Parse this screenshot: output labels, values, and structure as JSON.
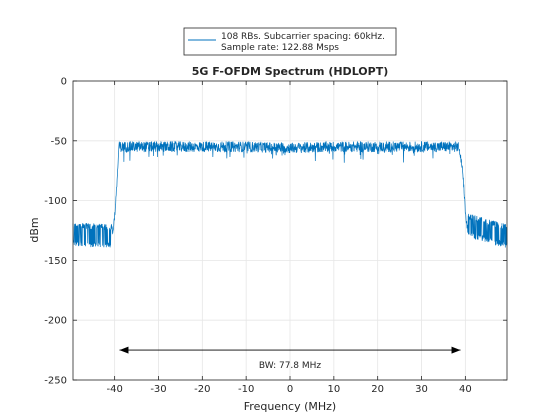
{
  "chart_data": {
    "type": "line",
    "title": "5G F-OFDM Spectrum (HDLOPT)",
    "xlabel": "Frequency (MHz)",
    "ylabel": "dBm",
    "xlim": [
      -49.5,
      49.5
    ],
    "ylim": [
      -250,
      0
    ],
    "xticks": [
      -40,
      -30,
      -20,
      -10,
      0,
      10,
      20,
      30,
      40
    ],
    "yticks": [
      0,
      -50,
      -100,
      -150,
      -200,
      -250
    ],
    "grid": true,
    "legend": {
      "placement": "top-center",
      "lines": [
        "108 RBs. Subcarrier spacing: 60kHz.",
        "Sample rate: 122.88 Msps"
      ]
    },
    "series": [
      {
        "name": "108 RBs. Subcarrier spacing: 60kHz.",
        "color": "#0072BD",
        "description_points": {
          "x": [
            -49.5,
            -40.5,
            -39.8,
            -39.0,
            -30,
            -20,
            -10,
            0,
            10,
            20,
            30,
            38.5,
            39.4,
            40.2,
            49.5
          ],
          "y": [
            -128,
            -130,
            -105,
            -55,
            -55,
            -55,
            -55,
            -56,
            -55,
            -55,
            -55,
            -55,
            -75,
            -120,
            -130
          ]
        },
        "band_level_dBm": -55,
        "noise_floor_dBm": -128
      }
    ],
    "annotations": [
      {
        "text": "BW: 77.8 MHz",
        "type": "double-arrow",
        "x_from": -38.9,
        "x_to": 38.9,
        "y": -225
      }
    ]
  }
}
